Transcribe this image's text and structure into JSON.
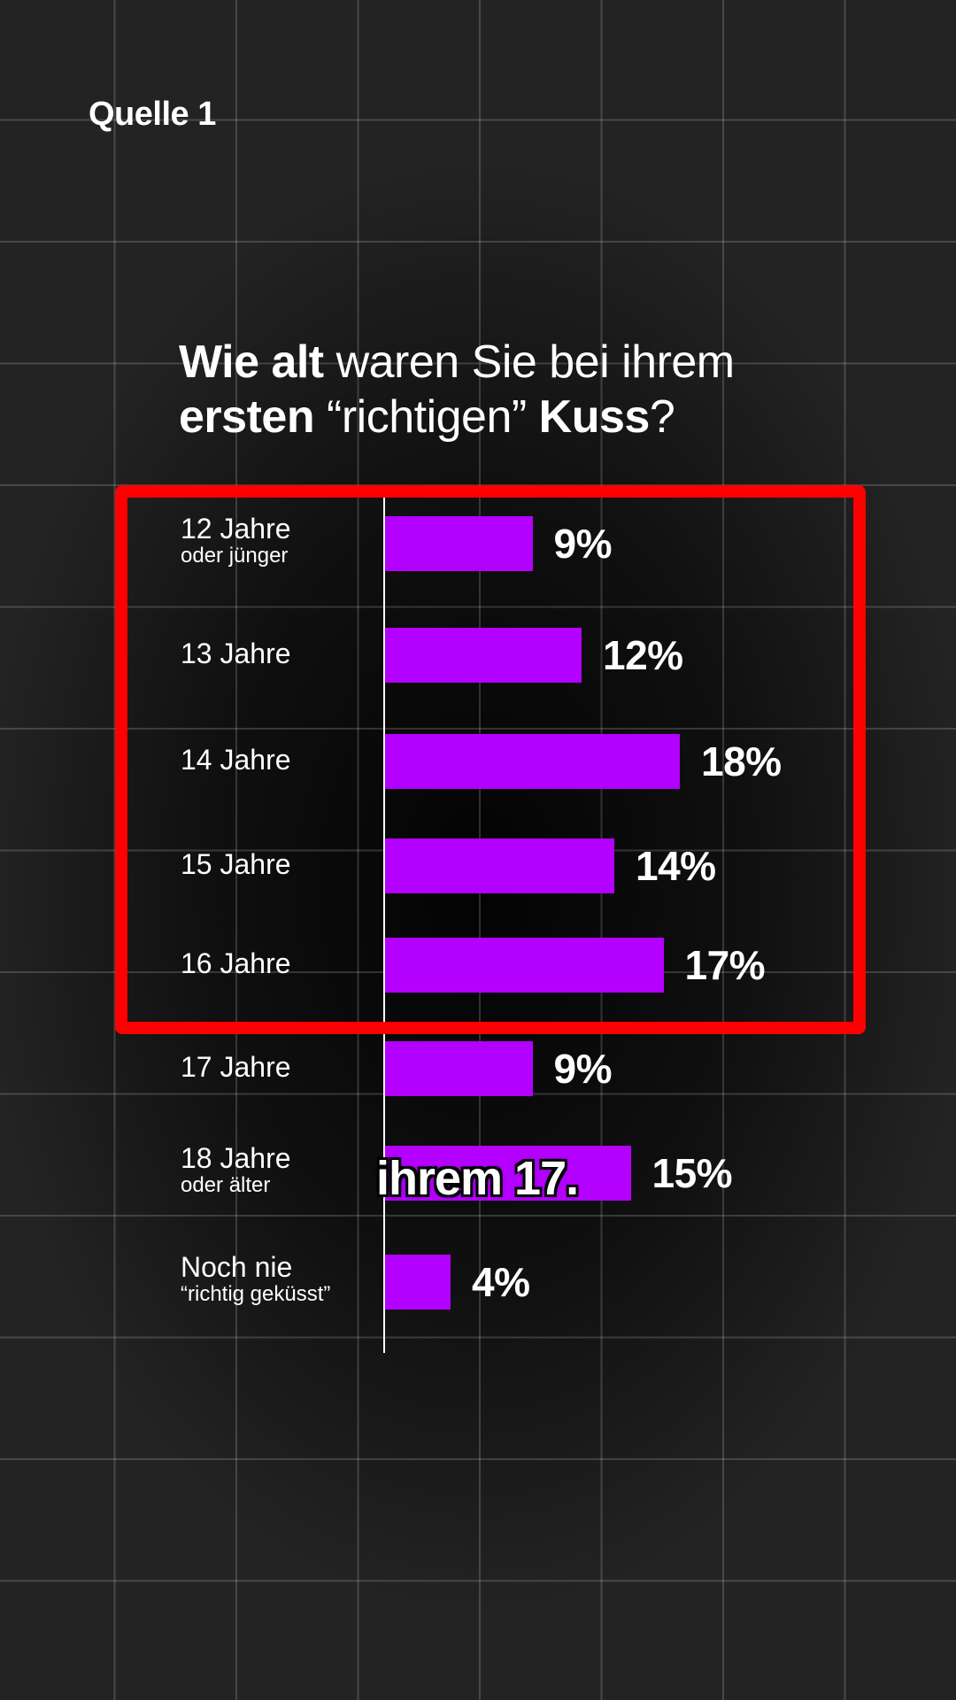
{
  "source_label": "Quelle 1",
  "title": {
    "part1_bold": "Wie alt",
    "part1_regular": " waren Sie bei ihrem",
    "part2_bold": "ersten",
    "part2_regular": " “richtigen” ",
    "part3_bold": "Kuss",
    "part4_regular": "?"
  },
  "caption": "ihrem 17.",
  "colors": {
    "bar": "#b400ff",
    "highlight": "#ff0000",
    "background": "#232323"
  },
  "chart_data": {
    "type": "bar",
    "orientation": "horizontal",
    "categories": [
      {
        "line1": "12 Jahre",
        "line2": "oder jünger"
      },
      {
        "line1": "13 Jahre",
        "line2": ""
      },
      {
        "line1": "14 Jahre",
        "line2": ""
      },
      {
        "line1": "15 Jahre",
        "line2": ""
      },
      {
        "line1": "16 Jahre",
        "line2": ""
      },
      {
        "line1": "17 Jahre",
        "line2": ""
      },
      {
        "line1": "18 Jahre",
        "line2": "oder älter"
      },
      {
        "line1": "Noch nie",
        "line2": "“richtig geküsst”"
      }
    ],
    "values": [
      9,
      12,
      18,
      14,
      17,
      9,
      15,
      4
    ],
    "value_labels": [
      "9%",
      "12%",
      "18%",
      "14%",
      "17%",
      "9%",
      "15%",
      "4%"
    ],
    "highlighted_categories": [
      "12 Jahre oder jünger",
      "13 Jahre",
      "14 Jahre",
      "15 Jahre",
      "16 Jahre"
    ]
  }
}
